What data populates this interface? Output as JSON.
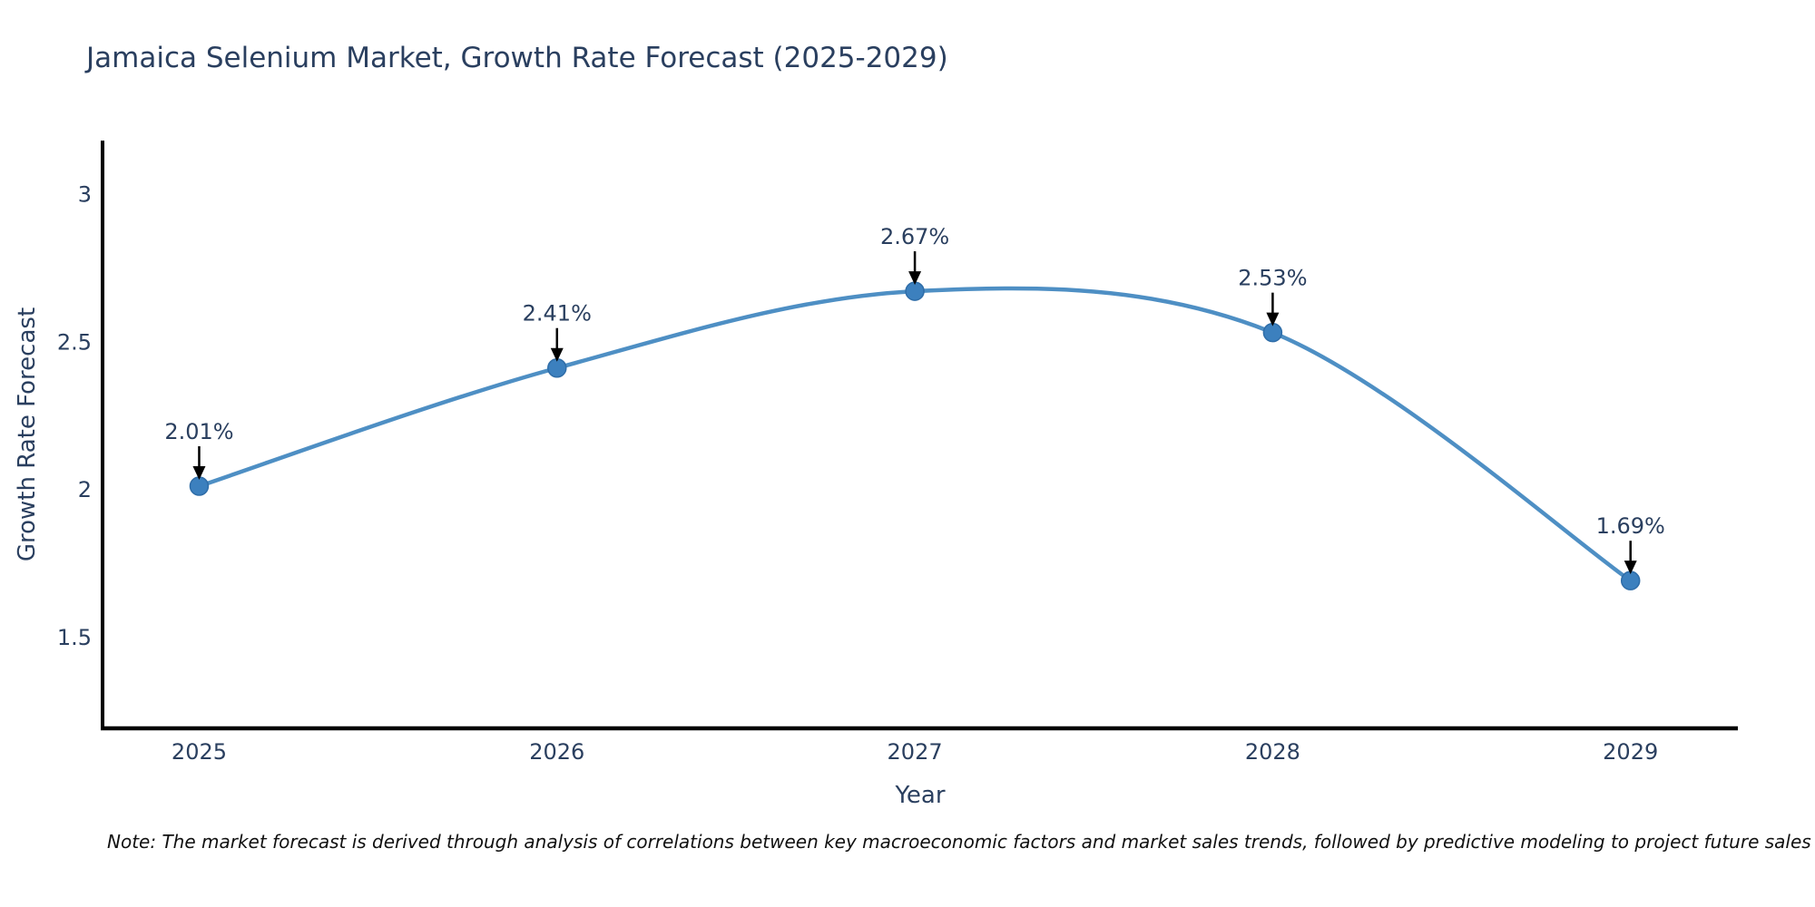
{
  "title": {
    "text": "Jamaica Selenium Market, Growth Rate Forecast (2025-2029)",
    "color": "#2a3f5f"
  },
  "note": {
    "text": "Note: The market forecast is derived through analysis of correlations between key macroeconomic factors and market sales trends, followed by predictive modeling to project future sales"
  },
  "chart_data": {
    "type": "line",
    "title": "Jamaica Selenium Market, Growth Rate Forecast (2025-2029)",
    "x": [
      2025,
      2026,
      2027,
      2028,
      2029
    ],
    "xtick_labels": [
      "2025",
      "2026",
      "2027",
      "2028",
      "2029"
    ],
    "series": [
      {
        "name": "Growth Rate Forecast",
        "values": [
          2.01,
          2.41,
          2.67,
          2.53,
          1.69
        ]
      }
    ],
    "point_labels": [
      "2.01%",
      "2.41%",
      "2.67%",
      "2.53%",
      "1.69%"
    ],
    "xlabel": "Year",
    "ylabel": "Growth Rate Forecast",
    "yticks": [
      1.5,
      2,
      2.5,
      3
    ],
    "ytick_labels": [
      "1.5",
      "2",
      "2.5",
      "3"
    ],
    "xlim": [
      2024.73,
      2029.3
    ],
    "ylim": [
      1.19,
      3.18
    ],
    "grid": false,
    "legend": "none",
    "line_shape": "spline",
    "colors": {
      "line": "#4e8fc4",
      "marker": "#3c80be",
      "marker_edge": "#2f6da8",
      "axis": "#000000",
      "tick_text": "#2a3f5f",
      "annotation_text": "#2a3f5f",
      "arrow": "#000000"
    }
  }
}
